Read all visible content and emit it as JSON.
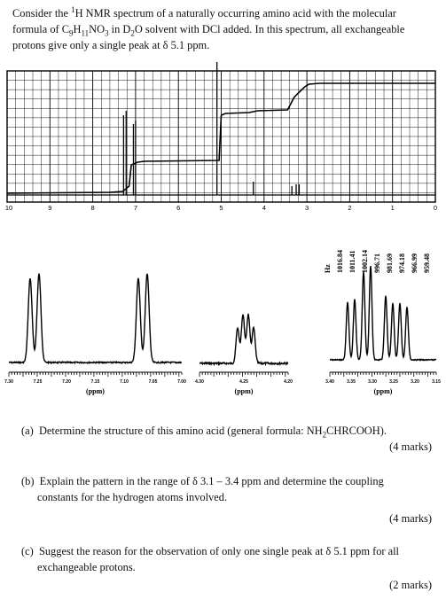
{
  "intro": {
    "line1_a": "Consider the ",
    "line1_sup": "1",
    "line1_b": "H NMR spectrum of a naturally occurring amino acid with the molecular",
    "line2_a": "formula of C",
    "line2_sub1": "9",
    "line2_b": "H",
    "line2_sub2": "11",
    "line2_c": "NO",
    "line2_sub3": "3",
    "line2_d": " in D",
    "line2_sub4": "2",
    "line2_e": "O solvent with DCl added. In this spectrum, all exchangeable",
    "line3": "protons give only a single peak at δ 5.1 ppm."
  },
  "spectrum": {
    "axis_ticks": [
      "10",
      "9",
      "8",
      "7",
      "6",
      "5",
      "4",
      "3",
      "2",
      "1",
      "0"
    ],
    "hz_label": "Hz",
    "hz_values": [
      "1016.84",
      "1011.41",
      "1002.14",
      "996.71",
      "981.69",
      "974.18",
      "966.99",
      "959.48"
    ],
    "ppm_label": "(ppm)",
    "inset1_ticks": [
      "7.30",
      "7.25",
      "7.20",
      "7.15",
      "7.10",
      "7.05",
      "7.00"
    ],
    "inset2_ticks": [
      "4.30",
      "4.25",
      "4.20"
    ],
    "inset3_ticks": [
      "3.40",
      "3.35",
      "3.30",
      "3.25",
      "3.20",
      "3.15"
    ]
  },
  "questions": [
    {
      "label": "(a)",
      "text_a": "Determine the structure of this amino acid (general formula: NH",
      "text_sub": "2",
      "text_b": "CHRCOOH).",
      "marks": "(4 marks)"
    },
    {
      "label": "(b)",
      "line1": "Explain the pattern in the range of δ 3.1 – 3.4 ppm and determine the coupling",
      "line2": "constants for the hydrogen atoms involved.",
      "marks": "(4 marks)"
    },
    {
      "label": "(c)",
      "line1": "Suggest the reason for the observation of only one single peak at δ 5.1 ppm for all",
      "line2": "exchangeable protons.",
      "marks": "(2 marks)"
    }
  ]
}
